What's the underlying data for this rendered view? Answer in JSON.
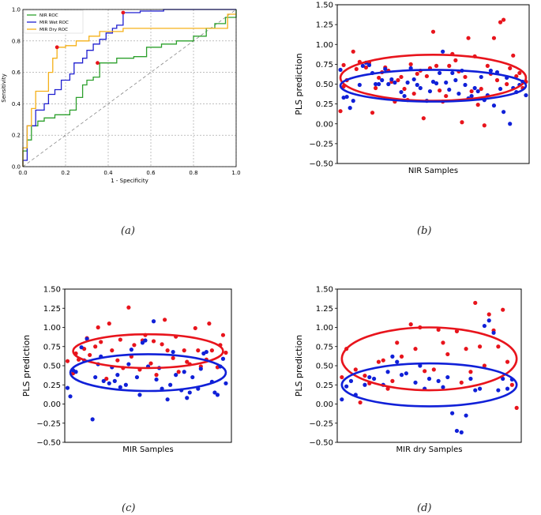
{
  "figure": {
    "panel_captions": [
      "(a)",
      "(b)",
      "(c)",
      "(d)"
    ]
  },
  "colors": {
    "nir_roc": "#2ca02c",
    "mir_wet_roc": "#1f1fd0",
    "mir_dry_roc": "#f5b018",
    "red": "#e8141c",
    "blue": "#1020d8",
    "diag": "#888888"
  },
  "chart_data": [
    {
      "id": "a",
      "type": "line",
      "title": "",
      "xlabel": "1 - Specificity",
      "ylabel": "Sensitivity",
      "xlim": [
        0,
        1
      ],
      "ylim": [
        0,
        1
      ],
      "grid": true,
      "xticks": [
        "0.0",
        "0.2",
        "0.4",
        "0.6",
        "0.8",
        "1.0"
      ],
      "yticks": [
        "0.0",
        "0.2",
        "0.4",
        "0.6",
        "0.8",
        "1.0"
      ],
      "legend": {
        "position": "top-left",
        "entries": [
          "NIR ROC",
          "MIR Wet ROC",
          "MIR Dry ROC"
        ]
      },
      "series": [
        {
          "name": "NIR ROC",
          "color_key": "nir_roc",
          "x": [
            0,
            0,
            0.02,
            0.02,
            0.04,
            0.04,
            0.07,
            0.07,
            0.1,
            0.1,
            0.15,
            0.15,
            0.22,
            0.22,
            0.25,
            0.25,
            0.28,
            0.28,
            0.3,
            0.3,
            0.33,
            0.33,
            0.36,
            0.36,
            0.44,
            0.44,
            0.52,
            0.52,
            0.58,
            0.58,
            0.65,
            0.65,
            0.72,
            0.72,
            0.8,
            0.8,
            0.86,
            0.86,
            0.9,
            0.9,
            0.95,
            0.95,
            1.0,
            1.0
          ],
          "y": [
            0,
            0.1,
            0.1,
            0.17,
            0.17,
            0.26,
            0.26,
            0.29,
            0.29,
            0.31,
            0.31,
            0.33,
            0.33,
            0.36,
            0.36,
            0.44,
            0.44,
            0.52,
            0.52,
            0.55,
            0.55,
            0.57,
            0.57,
            0.66,
            0.66,
            0.69,
            0.69,
            0.7,
            0.7,
            0.76,
            0.76,
            0.78,
            0.78,
            0.8,
            0.8,
            0.83,
            0.83,
            0.88,
            0.88,
            0.91,
            0.91,
            0.95,
            0.95,
            1.0
          ],
          "markers": [
            {
              "x": 0.35,
              "y": 0.66
            }
          ]
        },
        {
          "name": "MIR Wet ROC",
          "color_key": "mir_wet_roc",
          "x": [
            0,
            0,
            0.02,
            0.02,
            0.06,
            0.06,
            0.1,
            0.1,
            0.12,
            0.12,
            0.15,
            0.15,
            0.18,
            0.18,
            0.22,
            0.22,
            0.24,
            0.24,
            0.28,
            0.28,
            0.3,
            0.3,
            0.33,
            0.33,
            0.36,
            0.36,
            0.39,
            0.39,
            0.42,
            0.42,
            0.44,
            0.44,
            0.47,
            0.47,
            0.55,
            0.55,
            0.66,
            0.66,
            0.75,
            0.75,
            0.85,
            0.85,
            1.0
          ],
          "y": [
            0,
            0.04,
            0.04,
            0.26,
            0.26,
            0.36,
            0.36,
            0.4,
            0.4,
            0.46,
            0.46,
            0.49,
            0.49,
            0.55,
            0.55,
            0.59,
            0.59,
            0.66,
            0.66,
            0.69,
            0.69,
            0.74,
            0.74,
            0.78,
            0.78,
            0.81,
            0.81,
            0.85,
            0.85,
            0.88,
            0.88,
            0.9,
            0.9,
            0.98,
            0.98,
            0.99,
            0.99,
            1.0,
            1.0,
            1.0,
            1.0,
            1.0,
            1.0
          ],
          "markers": [
            {
              "x": 0.47,
              "y": 0.98
            }
          ]
        },
        {
          "name": "MIR Dry ROC",
          "color_key": "mir_dry_roc",
          "x": [
            0,
            0,
            0.02,
            0.02,
            0.04,
            0.04,
            0.06,
            0.06,
            0.12,
            0.12,
            0.14,
            0.14,
            0.16,
            0.16,
            0.2,
            0.2,
            0.25,
            0.25,
            0.31,
            0.31,
            0.36,
            0.36,
            0.47,
            0.47,
            0.56,
            0.56,
            0.74,
            0.74,
            0.84,
            0.84,
            0.96,
            0.96,
            1.0
          ],
          "y": [
            0,
            0.12,
            0.12,
            0.26,
            0.26,
            0.37,
            0.37,
            0.48,
            0.48,
            0.6,
            0.6,
            0.69,
            0.69,
            0.76,
            0.76,
            0.77,
            0.77,
            0.8,
            0.8,
            0.83,
            0.83,
            0.86,
            0.86,
            0.88,
            0.88,
            0.88,
            0.88,
            0.88,
            0.88,
            0.88,
            0.88,
            0.97,
            0.97
          ],
          "markers": [
            {
              "x": 0.16,
              "y": 0.76
            }
          ]
        }
      ],
      "reference_line": {
        "x": [
          0,
          1
        ],
        "y": [
          0,
          1
        ],
        "style": "dashed"
      }
    },
    {
      "id": "b",
      "type": "scatter",
      "title": "",
      "xlabel": "NIR Samples",
      "ylabel": "PLS prediction",
      "xlim": [
        0,
        60
      ],
      "ylim": [
        -0.5,
        1.5
      ],
      "grid": false,
      "yticks": [
        "−0.50",
        "−0.25",
        "0.00",
        "0.25",
        "0.50",
        "0.75",
        "1.00",
        "1.25",
        "1.50"
      ],
      "series": [
        {
          "name": "red",
          "color_key": "red",
          "x": [
            1,
            2,
            3,
            5,
            6,
            7,
            9,
            10,
            11,
            13,
            15,
            16,
            17,
            18,
            19,
            21,
            22,
            23,
            25,
            26,
            27,
            28,
            29,
            30,
            31,
            33,
            34,
            35,
            36,
            37,
            38,
            39,
            40,
            41,
            42,
            43,
            44,
            45,
            46,
            47,
            48,
            49,
            51,
            52,
            53,
            54,
            55,
            56,
            57,
            58,
            2,
            12,
            14,
            20,
            24,
            32,
            50,
            59
          ],
          "y": [
            0.16,
            0.74,
            0.55,
            0.91,
            0.69,
            0.78,
            0.71,
            0.77,
            0.14,
            0.58,
            0.71,
            0.67,
            0.53,
            0.28,
            0.55,
            0.44,
            0.3,
            0.75,
            0.63,
            0.67,
            0.07,
            0.6,
            0.7,
            1.16,
            0.73,
            0.28,
            0.35,
            0.73,
            0.88,
            0.8,
            0.66,
            0.02,
            0.59,
            1.08,
            0.41,
            0.85,
            0.24,
            0.44,
            -0.02,
            0.73,
            0.63,
            1.08,
            1.28,
            1.31,
            0.5,
            0.7,
            0.86,
            0.6,
            0.64,
            0.45,
            0.47,
            0.45,
            0.65,
            0.59,
            0.38,
            0.42,
            0.55,
            0.53
          ]
        },
        {
          "name": "blue",
          "color_key": "blue",
          "x": [
            1,
            2,
            3,
            4,
            5,
            7,
            8,
            9,
            10,
            11,
            12,
            13,
            14,
            15,
            16,
            17,
            18,
            20,
            21,
            22,
            23,
            24,
            25,
            26,
            28,
            29,
            30,
            31,
            32,
            33,
            34,
            35,
            36,
            37,
            38,
            39,
            40,
            41,
            42,
            43,
            44,
            45,
            46,
            47,
            48,
            49,
            50,
            51,
            52,
            53,
            54,
            55,
            56,
            57,
            58,
            59
          ],
          "y": [
            0.68,
            0.33,
            0.34,
            0.2,
            0.29,
            0.49,
            0.73,
            0.77,
            0.74,
            0.64,
            0.5,
            0.5,
            0.55,
            0.69,
            0.5,
            0.56,
            0.52,
            0.4,
            0.35,
            0.52,
            0.7,
            0.56,
            0.49,
            0.45,
            0.29,
            0.41,
            0.53,
            0.51,
            0.64,
            0.91,
            0.52,
            0.43,
            0.64,
            0.55,
            0.38,
            0.67,
            0.49,
            0.32,
            0.35,
            0.45,
            0.41,
            0.59,
            0.3,
            0.36,
            0.67,
            0.23,
            0.65,
            0.44,
            0.15,
            0.58,
            0.0,
            0.45,
            0.4,
            0.49,
            0.53,
            0.36
          ]
        }
      ],
      "ellipses": [
        {
          "color_key": "red",
          "cx": 30,
          "cy": 0.58,
          "rx": 29,
          "ry": 0.29
        },
        {
          "color_key": "blue",
          "cx": 30,
          "cy": 0.48,
          "rx": 29,
          "ry": 0.2
        }
      ]
    },
    {
      "id": "c",
      "type": "scatter",
      "title": "",
      "xlabel": "MIR Samples",
      "ylabel": "PLS prediction",
      "xlim": [
        0,
        60
      ],
      "ylim": [
        -0.5,
        1.5
      ],
      "grid": false,
      "yticks": [
        "−0.50",
        "−0.25",
        "0.00",
        "0.25",
        "0.50",
        "0.75",
        "1.00",
        "1.25",
        "1.50"
      ],
      "series": [
        {
          "name": "red",
          "color_key": "red",
          "x": [
            1,
            3,
            4,
            5,
            7,
            8,
            9,
            11,
            12,
            13,
            15,
            16,
            17,
            19,
            20,
            21,
            23,
            24,
            25,
            27,
            28,
            29,
            31,
            32,
            33,
            35,
            36,
            37,
            39,
            40,
            41,
            43,
            44,
            45,
            47,
            48,
            49,
            51,
            52,
            53,
            55,
            56,
            57,
            58
          ],
          "y": [
            0.56,
            0.4,
            0.66,
            0.58,
            0.72,
            0.86,
            0.64,
            0.75,
            1.0,
            0.81,
            0.33,
            1.05,
            0.7,
            0.57,
            0.84,
            0.47,
            1.26,
            0.62,
            0.77,
            0.45,
            0.83,
            0.9,
            0.53,
            0.82,
            0.38,
            0.78,
            1.1,
            0.7,
            0.6,
            0.88,
            0.42,
            0.7,
            0.55,
            0.52,
            0.99,
            0.7,
            0.49,
            0.58,
            1.05,
            0.7,
            0.48,
            0.77,
            0.9,
            0.67
          ]
        },
        {
          "name": "blue",
          "color_key": "blue",
          "x": [
            1,
            2,
            3,
            4,
            6,
            7,
            8,
            10,
            11,
            12,
            13,
            14,
            16,
            17,
            18,
            19,
            20,
            22,
            23,
            24,
            26,
            27,
            28,
            29,
            30,
            32,
            33,
            34,
            35,
            37,
            38,
            39,
            40,
            42,
            43,
            44,
            45,
            46,
            48,
            49,
            50,
            51,
            53,
            54,
            55,
            56,
            57,
            58
          ],
          "y": [
            0.21,
            0.1,
            0.44,
            0.42,
            0.74,
            0.57,
            0.85,
            -0.2,
            0.35,
            0.52,
            0.62,
            0.3,
            0.27,
            0.48,
            0.3,
            0.38,
            0.22,
            0.25,
            0.52,
            0.71,
            0.35,
            0.12,
            0.8,
            0.83,
            0.49,
            1.08,
            0.32,
            0.47,
            0.2,
            0.06,
            0.25,
            0.68,
            0.38,
            0.18,
            0.42,
            0.08,
            0.15,
            0.35,
            0.2,
            0.46,
            0.66,
            0.68,
            0.29,
            0.15,
            0.12,
            0.49,
            0.59,
            0.27
          ]
        }
      ],
      "ellipses": [
        {
          "color_key": "red",
          "cx": 30,
          "cy": 0.69,
          "rx": 27,
          "ry": 0.22
        },
        {
          "color_key": "blue",
          "cx": 30,
          "cy": 0.41,
          "rx": 28,
          "ry": 0.24
        }
      ]
    },
    {
      "id": "d",
      "type": "scatter",
      "title": "",
      "xlabel": "MIR dry Samples",
      "ylabel": "PLS prediction",
      "xlim": [
        0,
        40
      ],
      "ylim": [
        -0.5,
        1.5
      ],
      "grid": false,
      "yticks": [
        "−0.50",
        "−0.25",
        "0.00",
        "0.25",
        "0.50",
        "0.75",
        "1.00",
        "1.25",
        "1.50"
      ],
      "series": [
        {
          "name": "red",
          "color_key": "red",
          "x": [
            1,
            2,
            4,
            5,
            6,
            7,
            9,
            10,
            11,
            12,
            13,
            14,
            16,
            17,
            18,
            19,
            21,
            22,
            23,
            24,
            26,
            27,
            28,
            29,
            30,
            31,
            32,
            33,
            34,
            35,
            36,
            37,
            38,
            39
          ],
          "y": [
            0.35,
            0.72,
            0.45,
            0.02,
            0.37,
            0.27,
            0.55,
            0.57,
            0.2,
            0.3,
            0.8,
            0.62,
            1.04,
            0.72,
            1.0,
            0.43,
            0.45,
            0.97,
            0.8,
            0.65,
            0.95,
            0.28,
            0.72,
            0.42,
            1.32,
            0.75,
            0.5,
            1.17,
            0.96,
            0.75,
            1.23,
            0.55,
            0.25,
            -0.05
          ]
        },
        {
          "name": "blue",
          "color_key": "blue",
          "x": [
            1,
            2,
            3,
            4,
            6,
            7,
            8,
            10,
            11,
            12,
            13,
            14,
            15,
            17,
            18,
            19,
            20,
            22,
            23,
            24,
            25,
            26,
            27,
            28,
            29,
            30,
            31,
            32,
            33,
            34,
            35,
            36,
            37,
            38
          ],
          "y": [
            0.06,
            0.23,
            0.3,
            0.12,
            0.25,
            0.35,
            0.33,
            0.25,
            0.42,
            0.62,
            0.55,
            0.38,
            0.4,
            0.28,
            0.5,
            0.2,
            0.33,
            0.3,
            0.22,
            0.35,
            -0.12,
            -0.35,
            -0.37,
            -0.15,
            0.33,
            0.18,
            0.2,
            1.02,
            1.09,
            0.93,
            0.18,
            0.33,
            0.2,
            0.32
          ]
        }
      ],
      "ellipses": [
        {
          "color_key": "red",
          "cx": 20,
          "cy": 0.59,
          "rx": 19,
          "ry": 0.41
        },
        {
          "color_key": "blue",
          "cx": 20,
          "cy": 0.25,
          "rx": 19,
          "ry": 0.28
        }
      ]
    }
  ]
}
